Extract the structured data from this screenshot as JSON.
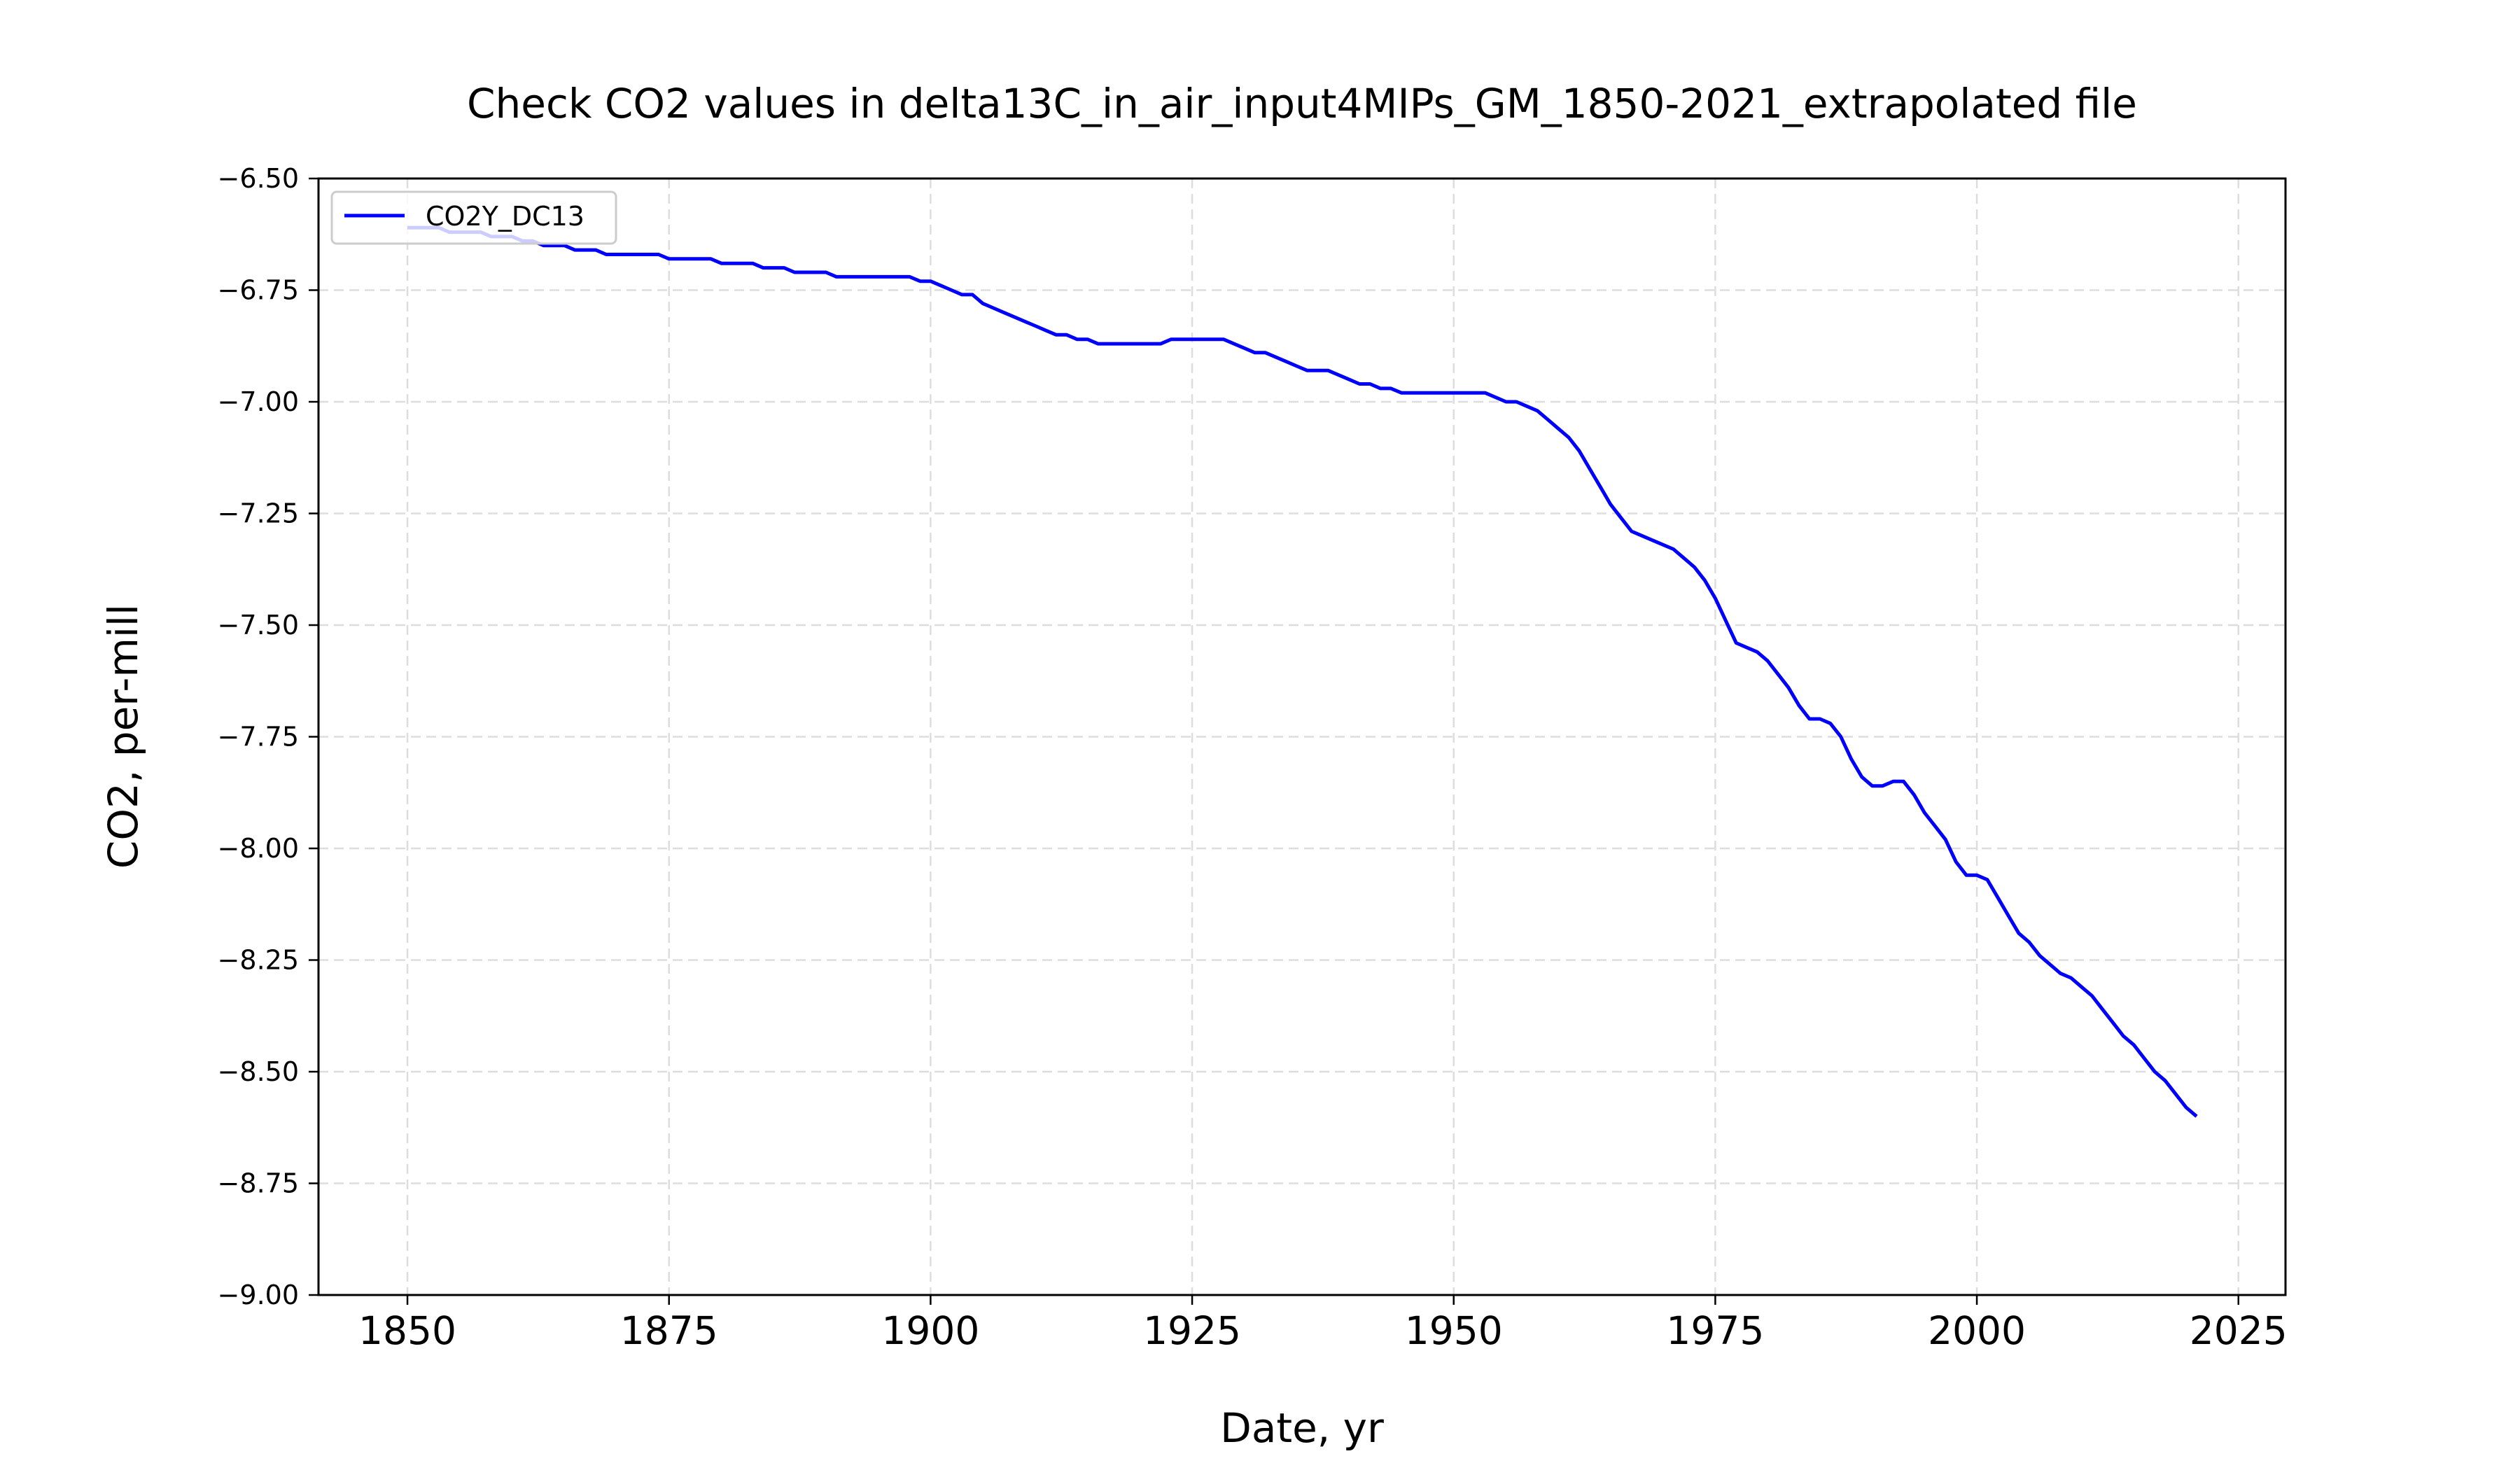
{
  "chart_data": {
    "type": "line",
    "title": "Check CO2 values in delta13C_in_air_input4MIPs_GM_1850-2021_extrapolated file",
    "xlabel": "Date, yr",
    "ylabel": "CO2, per-mill",
    "xlim": [
      1841.5,
      2029.5
    ],
    "ylim": [
      -9.0,
      -6.5
    ],
    "x_ticks": [
      1850,
      1875,
      1900,
      1925,
      1950,
      1975,
      2000,
      2025
    ],
    "y_ticks": [
      -6.5,
      -6.75,
      -7.0,
      -7.25,
      -7.5,
      -7.75,
      -8.0,
      -8.25,
      -8.5,
      -8.75,
      -9.0
    ],
    "y_tick_labels": [
      "−6.50",
      "−6.75",
      "−7.00",
      "−7.25",
      "−7.50",
      "−7.75",
      "−8.00",
      "−8.25",
      "−8.50",
      "−8.75",
      "−9.00"
    ],
    "grid": true,
    "legend_position": "top-left",
    "series": [
      {
        "name": "CO2Y_DC13",
        "color": "#0000ff",
        "x": [
          1850,
          1851,
          1852,
          1853,
          1854,
          1855,
          1856,
          1857,
          1858,
          1859,
          1860,
          1861,
          1862,
          1863,
          1864,
          1865,
          1866,
          1867,
          1868,
          1869,
          1870,
          1871,
          1872,
          1873,
          1874,
          1875,
          1876,
          1877,
          1878,
          1879,
          1880,
          1881,
          1882,
          1883,
          1884,
          1885,
          1886,
          1887,
          1888,
          1889,
          1890,
          1891,
          1892,
          1893,
          1894,
          1895,
          1896,
          1897,
          1898,
          1899,
          1900,
          1901,
          1902,
          1903,
          1904,
          1905,
          1906,
          1907,
          1908,
          1909,
          1910,
          1911,
          1912,
          1913,
          1914,
          1915,
          1916,
          1917,
          1918,
          1919,
          1920,
          1921,
          1922,
          1923,
          1924,
          1925,
          1926,
          1927,
          1928,
          1929,
          1930,
          1931,
          1932,
          1933,
          1934,
          1935,
          1936,
          1937,
          1938,
          1939,
          1940,
          1941,
          1942,
          1943,
          1944,
          1945,
          1946,
          1947,
          1948,
          1949,
          1950,
          1951,
          1952,
          1953,
          1954,
          1955,
          1956,
          1957,
          1958,
          1959,
          1960,
          1961,
          1962,
          1963,
          1964,
          1965,
          1966,
          1967,
          1968,
          1969,
          1970,
          1971,
          1972,
          1973,
          1974,
          1975,
          1976,
          1977,
          1978,
          1979,
          1980,
          1981,
          1982,
          1983,
          1984,
          1985,
          1986,
          1987,
          1988,
          1989,
          1990,
          1991,
          1992,
          1993,
          1994,
          1995,
          1996,
          1997,
          1998,
          1999,
          2000,
          2001,
          2002,
          2003,
          2004,
          2005,
          2006,
          2007,
          2008,
          2009,
          2010,
          2011,
          2012,
          2013,
          2014,
          2015,
          2016,
          2017,
          2018,
          2019,
          2020,
          2021
        ],
        "values": [
          -6.61,
          -6.61,
          -6.61,
          -6.61,
          -6.62,
          -6.62,
          -6.62,
          -6.62,
          -6.63,
          -6.63,
          -6.63,
          -6.64,
          -6.64,
          -6.65,
          -6.65,
          -6.65,
          -6.66,
          -6.66,
          -6.66,
          -6.67,
          -6.67,
          -6.67,
          -6.67,
          -6.67,
          -6.67,
          -6.68,
          -6.68,
          -6.68,
          -6.68,
          -6.68,
          -6.69,
          -6.69,
          -6.69,
          -6.69,
          -6.7,
          -6.7,
          -6.7,
          -6.71,
          -6.71,
          -6.71,
          -6.71,
          -6.72,
          -6.72,
          -6.72,
          -6.72,
          -6.72,
          -6.72,
          -6.72,
          -6.72,
          -6.73,
          -6.73,
          -6.74,
          -6.75,
          -6.76,
          -6.76,
          -6.78,
          -6.79,
          -6.8,
          -6.81,
          -6.82,
          -6.83,
          -6.84,
          -6.85,
          -6.85,
          -6.86,
          -6.86,
          -6.87,
          -6.87,
          -6.87,
          -6.87,
          -6.87,
          -6.87,
          -6.87,
          -6.86,
          -6.86,
          -6.86,
          -6.86,
          -6.86,
          -6.86,
          -6.87,
          -6.88,
          -6.89,
          -6.89,
          -6.9,
          -6.91,
          -6.92,
          -6.93,
          -6.93,
          -6.93,
          -6.94,
          -6.95,
          -6.96,
          -6.96,
          -6.97,
          -6.97,
          -6.98,
          -6.98,
          -6.98,
          -6.98,
          -6.98,
          -6.98,
          -6.98,
          -6.98,
          -6.98,
          -6.99,
          -7.0,
          -7.0,
          -7.01,
          -7.02,
          -7.04,
          -7.06,
          -7.08,
          -7.11,
          -7.15,
          -7.19,
          -7.23,
          -7.26,
          -7.29,
          -7.3,
          -7.31,
          -7.32,
          -7.33,
          -7.35,
          -7.37,
          -7.4,
          -7.44,
          -7.49,
          -7.54,
          -7.55,
          -7.56,
          -7.58,
          -7.61,
          -7.64,
          -7.68,
          -7.71,
          -7.71,
          -7.72,
          -7.75,
          -7.8,
          -7.84,
          -7.86,
          -7.86,
          -7.85,
          -7.85,
          -7.88,
          -7.92,
          -7.95,
          -7.98,
          -8.03,
          -8.06,
          -8.06,
          -8.07,
          -8.11,
          -8.15,
          -8.19,
          -8.21,
          -8.24,
          -8.26,
          -8.28,
          -8.29,
          -8.31,
          -8.33,
          -8.36,
          -8.39,
          -8.42,
          -8.44,
          -8.47,
          -8.5,
          -8.52,
          -8.55,
          -8.58,
          -8.6
        ]
      }
    ]
  }
}
